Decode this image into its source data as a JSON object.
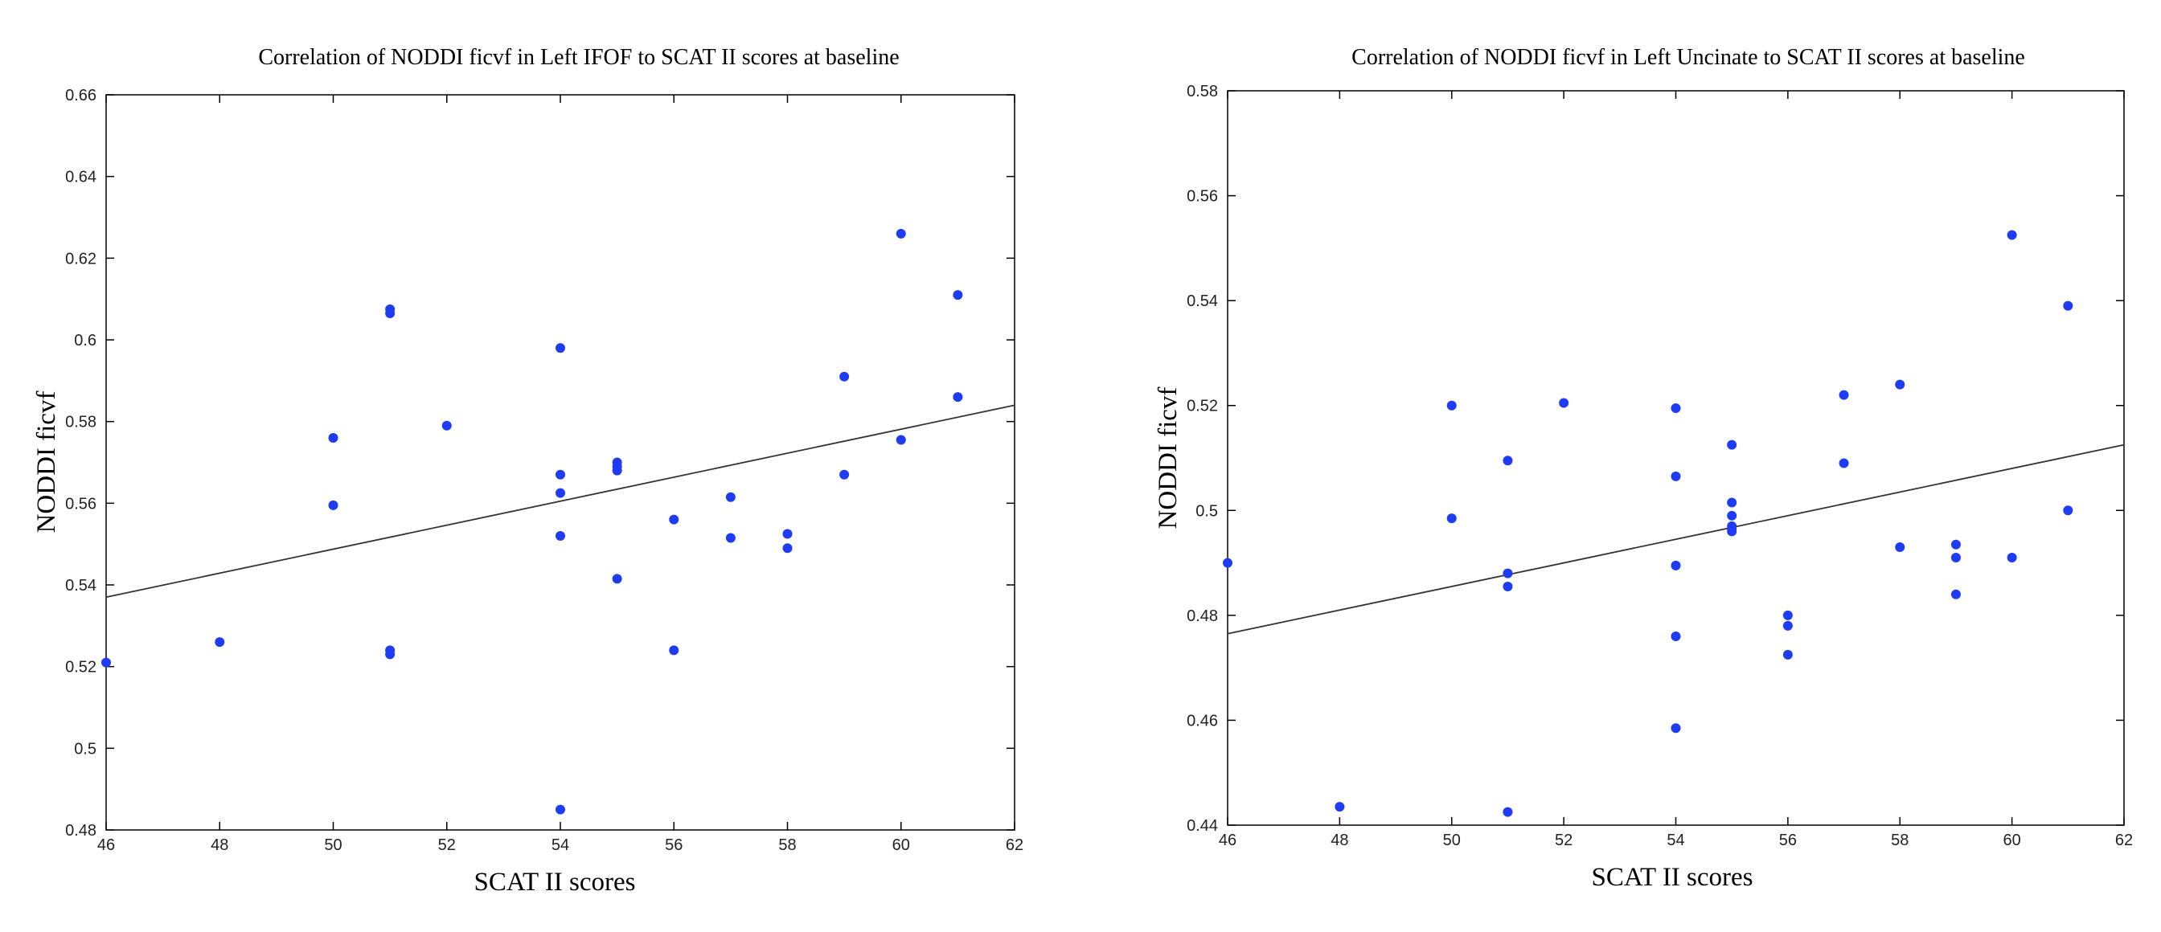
{
  "chart_data": [
    {
      "type": "scatter",
      "title": "Correlation of NODDI ficvf in Left IFOF to SCAT II scores at baseline",
      "xlabel": "SCAT II scores",
      "ylabel": "NODDI ficvf",
      "xlim": [
        46,
        62
      ],
      "ylim": [
        0.48,
        0.66
      ],
      "xticks": [
        "46",
        "48",
        "50",
        "52",
        "54",
        "56",
        "58",
        "60",
        "62"
      ],
      "yticks": [
        "0.48",
        "0.5",
        "0.52",
        "0.54",
        "0.56",
        "0.58",
        "0.6",
        "0.62",
        "0.64",
        "0.66"
      ],
      "points_color": "#1f3cf5",
      "points": [
        [
          46,
          0.521
        ],
        [
          48,
          0.526
        ],
        [
          50,
          0.576
        ],
        [
          50,
          0.5595
        ],
        [
          51,
          0.6075
        ],
        [
          51,
          0.6065
        ],
        [
          51,
          0.524
        ],
        [
          51,
          0.523
        ],
        [
          52,
          0.579
        ],
        [
          54,
          0.598
        ],
        [
          54,
          0.567
        ],
        [
          54,
          0.5625
        ],
        [
          54,
          0.552
        ],
        [
          54,
          0.485
        ],
        [
          55,
          0.57
        ],
        [
          55,
          0.569
        ],
        [
          55,
          0.568
        ],
        [
          55,
          0.5415
        ],
        [
          56,
          0.556
        ],
        [
          56,
          0.524
        ],
        [
          57,
          0.5615
        ],
        [
          57,
          0.5515
        ],
        [
          58,
          0.5525
        ],
        [
          58,
          0.549
        ],
        [
          59,
          0.591
        ],
        [
          59,
          0.567
        ],
        [
          60,
          0.626
        ],
        [
          60,
          0.5755
        ],
        [
          61,
          0.611
        ],
        [
          61,
          0.586
        ]
      ],
      "fit_line": [
        [
          46,
          0.537
        ],
        [
          62,
          0.584
        ]
      ]
    },
    {
      "type": "scatter",
      "title": "Correlation of NODDI ficvf in Left Uncinate to SCAT II scores at baseline",
      "xlabel": "SCAT II scores",
      "ylabel": "NODDI ficvf",
      "xlim": [
        46,
        62
      ],
      "ylim": [
        0.44,
        0.58
      ],
      "xticks": [
        "46",
        "48",
        "50",
        "52",
        "54",
        "56",
        "58",
        "60",
        "62"
      ],
      "yticks": [
        "0.44",
        "0.46",
        "0.48",
        "0.5",
        "0.52",
        "0.54",
        "0.56",
        "0.58"
      ],
      "points_color": "#1f3cf5",
      "points": [
        [
          46,
          0.49
        ],
        [
          48,
          0.4435
        ],
        [
          50,
          0.52
        ],
        [
          50,
          0.4985
        ],
        [
          51,
          0.5095
        ],
        [
          51,
          0.488
        ],
        [
          51,
          0.4855
        ],
        [
          51,
          0.4425
        ],
        [
          52,
          0.5205
        ],
        [
          54,
          0.5195
        ],
        [
          54,
          0.5065
        ],
        [
          54,
          0.4895
        ],
        [
          54,
          0.476
        ],
        [
          54,
          0.4585
        ],
        [
          55,
          0.5125
        ],
        [
          55,
          0.5015
        ],
        [
          55,
          0.499
        ],
        [
          55,
          0.497
        ],
        [
          55,
          0.4965
        ],
        [
          55,
          0.496
        ],
        [
          56,
          0.48
        ],
        [
          56,
          0.478
        ],
        [
          56,
          0.4725
        ],
        [
          57,
          0.522
        ],
        [
          57,
          0.509
        ],
        [
          58,
          0.524
        ],
        [
          58,
          0.493
        ],
        [
          59,
          0.4935
        ],
        [
          59,
          0.491
        ],
        [
          59,
          0.484
        ],
        [
          60,
          0.5525
        ],
        [
          60,
          0.491
        ],
        [
          61,
          0.539
        ],
        [
          61,
          0.5
        ]
      ],
      "fit_line": [
        [
          46,
          0.4765
        ],
        [
          62,
          0.5125
        ]
      ]
    }
  ]
}
